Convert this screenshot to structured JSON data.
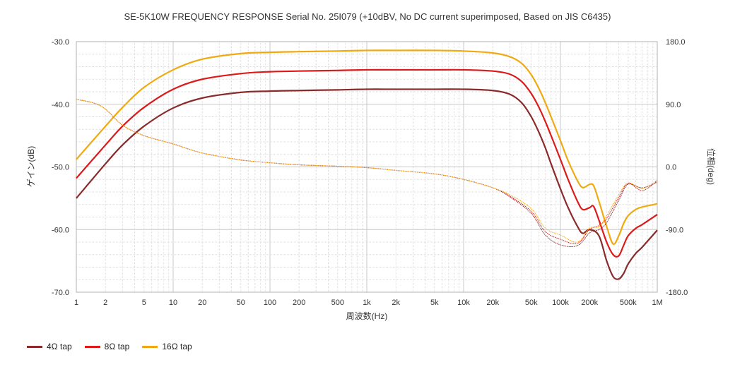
{
  "chart_data": {
    "type": "line",
    "title": "SE-5K10W FREQUENCY RESPONSE Serial No. 25I079 (+10dBV,  No DC current superimposed,  Based on JIS C6435)",
    "xlabel": "周波数(Hz)",
    "ylabel": "ゲイン(dB)",
    "y2label": "位相(deg)",
    "xscale": "log",
    "xlim": [
      1,
      1000000
    ],
    "ylim": [
      -70,
      -30
    ],
    "y2lim": [
      -180,
      180
    ],
    "x_ticks": [
      1,
      2,
      5,
      10,
      20,
      50,
      100,
      200,
      500,
      1000,
      2000,
      5000,
      10000,
      20000,
      50000,
      100000,
      200000,
      500000,
      1000000
    ],
    "x_tick_labels": [
      "1",
      "2",
      "5",
      "10",
      "20",
      "50",
      "100",
      "200",
      "500",
      "1k",
      "2k",
      "5k",
      "10k",
      "20k",
      "50k",
      "100k",
      "200k",
      "500k",
      "1M"
    ],
    "y_ticks": [
      -30,
      -40,
      -50,
      -60,
      -70
    ],
    "y_tick_labels": [
      "-30.0",
      "-40.0",
      "-50.0",
      "-60.0",
      "-70.0"
    ],
    "y2_ticks": [
      180,
      90,
      0,
      -90,
      -180
    ],
    "y2_tick_labels": [
      "180.0",
      "90.0",
      "0.0",
      "-90.0",
      "-180.0"
    ],
    "grid": true,
    "legend_position": "bottom-left",
    "series": [
      {
        "name": "4Ω tap",
        "color": "#8b2a2a",
        "axis": "gain",
        "x": [
          1,
          2,
          3,
          5,
          10,
          20,
          50,
          100,
          200,
          500,
          1000,
          2000,
          5000,
          10000,
          20000,
          30000,
          40000,
          50000,
          60000,
          70000,
          80000,
          100000,
          120000,
          150000,
          170000,
          200000,
          250000,
          300000,
          350000,
          400000,
          450000,
          500000,
          600000,
          700000,
          1000000
        ],
        "y": [
          -55.0,
          -49.5,
          -46.5,
          -43.5,
          -40.6,
          -39.0,
          -38.1,
          -37.9,
          -37.8,
          -37.7,
          -37.6,
          -37.6,
          -37.6,
          -37.6,
          -37.8,
          -38.4,
          -39.8,
          -42.0,
          -44.5,
          -47.0,
          -49.5,
          -53.5,
          -56.5,
          -59.5,
          -60.6,
          -60.0,
          -61.0,
          -65.0,
          -67.5,
          -67.9,
          -67.0,
          -65.5,
          -63.8,
          -62.8,
          -60.1
        ]
      },
      {
        "name": "8Ω tap",
        "color": "#dd1a1a",
        "axis": "gain",
        "x": [
          1,
          2,
          3,
          5,
          10,
          20,
          50,
          100,
          200,
          500,
          1000,
          2000,
          5000,
          10000,
          20000,
          30000,
          40000,
          50000,
          60000,
          70000,
          80000,
          100000,
          120000,
          150000,
          170000,
          200000,
          220000,
          250000,
          300000,
          350000,
          400000,
          450000,
          500000,
          600000,
          700000,
          1000000
        ],
        "y": [
          -51.8,
          -46.5,
          -43.5,
          -40.5,
          -37.6,
          -36.0,
          -35.1,
          -34.8,
          -34.7,
          -34.6,
          -34.5,
          -34.5,
          -34.5,
          -34.5,
          -34.7,
          -35.2,
          -36.4,
          -38.3,
          -40.5,
          -42.8,
          -45.0,
          -48.8,
          -52.0,
          -55.5,
          -56.8,
          -56.5,
          -56.3,
          -58.5,
          -62.0,
          -64.0,
          -64.2,
          -62.5,
          -61.0,
          -59.8,
          -59.2,
          -57.6
        ]
      },
      {
        "name": "16Ω tap",
        "color": "#f0aa10",
        "axis": "gain",
        "x": [
          1,
          2,
          3,
          5,
          10,
          20,
          50,
          100,
          200,
          500,
          1000,
          2000,
          5000,
          10000,
          20000,
          30000,
          40000,
          50000,
          60000,
          70000,
          80000,
          100000,
          120000,
          150000,
          170000,
          200000,
          220000,
          250000,
          300000,
          350000,
          400000,
          450000,
          500000,
          600000,
          700000,
          1000000
        ],
        "y": [
          -48.8,
          -43.5,
          -40.5,
          -37.3,
          -34.5,
          -32.8,
          -31.9,
          -31.7,
          -31.6,
          -31.5,
          -31.4,
          -31.4,
          -31.4,
          -31.5,
          -31.8,
          -32.4,
          -33.5,
          -35.3,
          -37.5,
          -39.8,
          -42.0,
          -45.8,
          -49.0,
          -52.2,
          -53.3,
          -52.8,
          -53.0,
          -55.5,
          -59.5,
          -62.3,
          -61.0,
          -59.0,
          -57.8,
          -56.8,
          -56.4,
          -55.9
        ]
      },
      {
        "name": "4Ω tap",
        "color": "#8b2a2a",
        "axis": "phase",
        "x": [
          1,
          1.5,
          2,
          3,
          5,
          10,
          20,
          50,
          100,
          200,
          500,
          1000,
          2000,
          5000,
          10000,
          20000,
          30000,
          50000,
          70000,
          100000,
          150000,
          200000,
          250000,
          300000,
          400000,
          500000,
          700000,
          1000000
        ],
        "y": [
          97,
          92,
          83,
          60,
          45,
          33,
          20,
          10,
          6,
          3,
          1,
          -1,
          -5,
          -10,
          -18,
          -30,
          -43,
          -67,
          -98,
          -112,
          -113,
          -95,
          -90,
          -80,
          -48,
          -25,
          -30,
          -22
        ]
      },
      {
        "name": "8Ω tap",
        "color": "#dd1a1a",
        "axis": "phase",
        "x": [
          1,
          1.5,
          2,
          3,
          5,
          10,
          20,
          50,
          100,
          200,
          500,
          1000,
          2000,
          5000,
          10000,
          20000,
          30000,
          50000,
          70000,
          100000,
          150000,
          200000,
          250000,
          300000,
          400000,
          500000,
          700000,
          1000000
        ],
        "y": [
          97,
          92,
          83,
          60,
          45,
          33,
          20,
          10,
          6,
          3,
          1,
          -1,
          -5,
          -10,
          -18,
          -30,
          -42,
          -64,
          -93,
          -104,
          -110,
          -90,
          -84,
          -74,
          -44,
          -24,
          -34,
          -20
        ]
      },
      {
        "name": "16Ω tap",
        "color": "#f0aa10",
        "axis": "phase",
        "x": [
          1,
          1.5,
          2,
          3,
          5,
          10,
          20,
          50,
          100,
          200,
          500,
          1000,
          2000,
          5000,
          10000,
          20000,
          30000,
          50000,
          70000,
          100000,
          150000,
          200000,
          250000,
          300000,
          400000,
          500000,
          700000,
          1000000
        ],
        "y": [
          97,
          92,
          83,
          60,
          45,
          33,
          20,
          10,
          6,
          3,
          1,
          -1,
          -5,
          -10,
          -18,
          -30,
          -40,
          -60,
          -88,
          -98,
          -108,
          -88,
          -86,
          -70,
          -40,
          -23,
          -31,
          -19
        ]
      }
    ]
  }
}
